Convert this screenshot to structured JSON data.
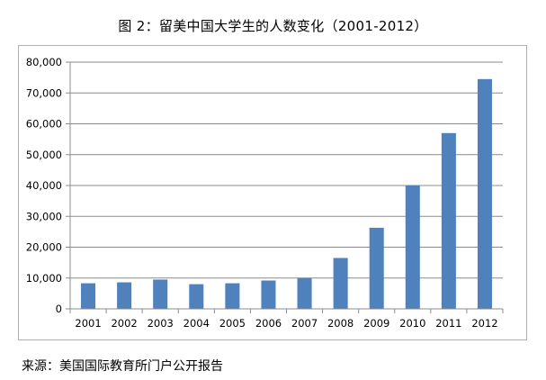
{
  "chart_data": {
    "type": "bar",
    "title": "图 2：留美中国大学生的人数变化（2001-2012）",
    "xlabel": "",
    "ylabel": "",
    "categories": [
      "2001",
      "2002",
      "2003",
      "2004",
      "2005",
      "2006",
      "2007",
      "2008",
      "2009",
      "2010",
      "2011",
      "2012"
    ],
    "values": [
      8300,
      8600,
      9500,
      8000,
      8300,
      9200,
      10000,
      16500,
      26300,
      40000,
      57000,
      74500
    ],
    "ylim": [
      0,
      80000
    ],
    "yticks": [
      0,
      10000,
      20000,
      30000,
      40000,
      50000,
      60000,
      70000,
      80000
    ],
    "ytick_labels": [
      "0",
      "10,000",
      "20,000",
      "30,000",
      "40,000",
      "50,000",
      "60,000",
      "70,000",
      "80,000"
    ],
    "grid": true,
    "legend": "none",
    "bar_color": "#4f81bd"
  },
  "source_note": "来源：美国国际教育所门户公开报告"
}
